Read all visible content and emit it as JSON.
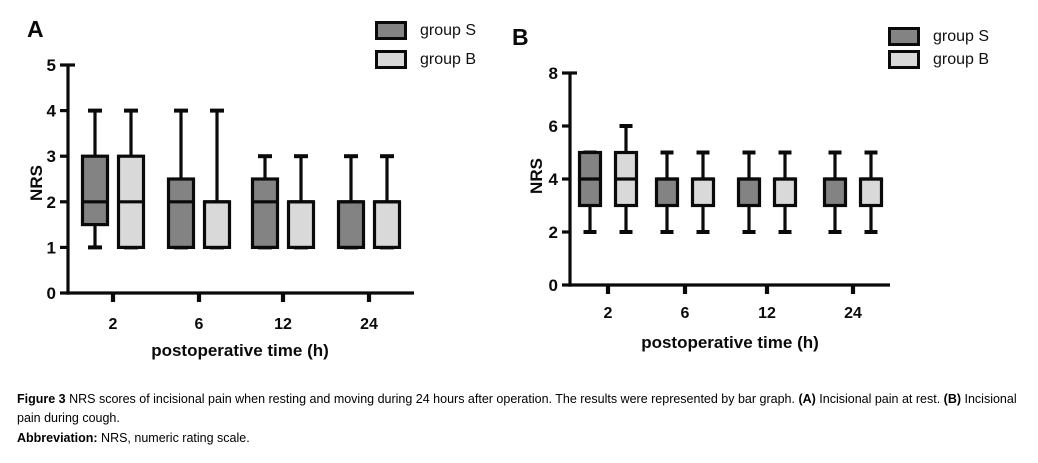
{
  "figure": {
    "panel_a_label": "A",
    "panel_b_label": "B"
  },
  "legend": {
    "items": [
      {
        "label": "group S",
        "color": "#838383"
      },
      {
        "label": "group B",
        "color": "#d9d9d9"
      }
    ]
  },
  "chart_data": [
    {
      "type": "box",
      "panel": "A",
      "xlabel": "postoperative time (h)",
      "ylabel": "NRS",
      "ylim": [
        0,
        5
      ],
      "yticks": [
        0,
        1,
        2,
        3,
        4,
        5
      ],
      "categories": [
        "2",
        "6",
        "12",
        "24"
      ],
      "grid": false,
      "legend_position": "top-right",
      "series": [
        {
          "name": "group S",
          "color": "#838383",
          "boxes": [
            {
              "min": 1,
              "q1": 1.5,
              "med": 2,
              "q3": 3,
              "max": 4
            },
            {
              "min": 1,
              "q1": 1,
              "med": 2,
              "q3": 2.5,
              "max": 4
            },
            {
              "min": 1,
              "q1": 1,
              "med": 2,
              "q3": 2.5,
              "max": 3
            },
            {
              "min": 1,
              "q1": 1,
              "med": 2,
              "q3": 2,
              "max": 3
            }
          ]
        },
        {
          "name": "group B",
          "color": "#d9d9d9",
          "boxes": [
            {
              "min": 1,
              "q1": 1,
              "med": 2,
              "q3": 3,
              "max": 4
            },
            {
              "min": 1,
              "q1": 1,
              "med": 2,
              "q3": 2,
              "max": 4
            },
            {
              "min": 1,
              "q1": 1,
              "med": 2,
              "q3": 2,
              "max": 3
            },
            {
              "min": 1,
              "q1": 1,
              "med": 2,
              "q3": 2,
              "max": 3
            }
          ]
        }
      ]
    },
    {
      "type": "box",
      "panel": "B",
      "xlabel": "postoperative time (h)",
      "ylabel": "NRS",
      "ylim": [
        0,
        8
      ],
      "yticks": [
        0,
        2,
        4,
        6,
        8
      ],
      "categories": [
        "2",
        "6",
        "12",
        "24"
      ],
      "grid": false,
      "legend_position": "top-right",
      "series": [
        {
          "name": "group S",
          "color": "#838383",
          "boxes": [
            {
              "min": 2,
              "q1": 3,
              "med": 4,
              "q3": 5,
              "max": 5
            },
            {
              "min": 2,
              "q1": 3,
              "med": 4,
              "q3": 4,
              "max": 5
            },
            {
              "min": 2,
              "q1": 3,
              "med": 4,
              "q3": 4,
              "max": 5
            },
            {
              "min": 2,
              "q1": 3,
              "med": 4,
              "q3": 4,
              "max": 5
            }
          ]
        },
        {
          "name": "group B",
          "color": "#d9d9d9",
          "boxes": [
            {
              "min": 2,
              "q1": 3,
              "med": 4,
              "q3": 5,
              "max": 6
            },
            {
              "min": 2,
              "q1": 3,
              "med": 4,
              "q3": 4,
              "max": 5
            },
            {
              "min": 2,
              "q1": 3,
              "med": 4,
              "q3": 4,
              "max": 5
            },
            {
              "min": 2,
              "q1": 3,
              "med": 4,
              "q3": 4,
              "max": 5
            }
          ]
        }
      ]
    }
  ],
  "caption": {
    "fig_label": "Figure 3",
    "body": " NRS scores of incisional pain when resting and moving during 24 hours after operation. The results were represented by bar graph. ",
    "a_label": "(A)",
    "a_text": " Incisional pain at rest. ",
    "b_label": "(B)",
    "b_text": " Incisional pain during cough.",
    "abbrev_label": "Abbreviation:",
    "abbrev_text": " NRS, numeric rating scale."
  }
}
